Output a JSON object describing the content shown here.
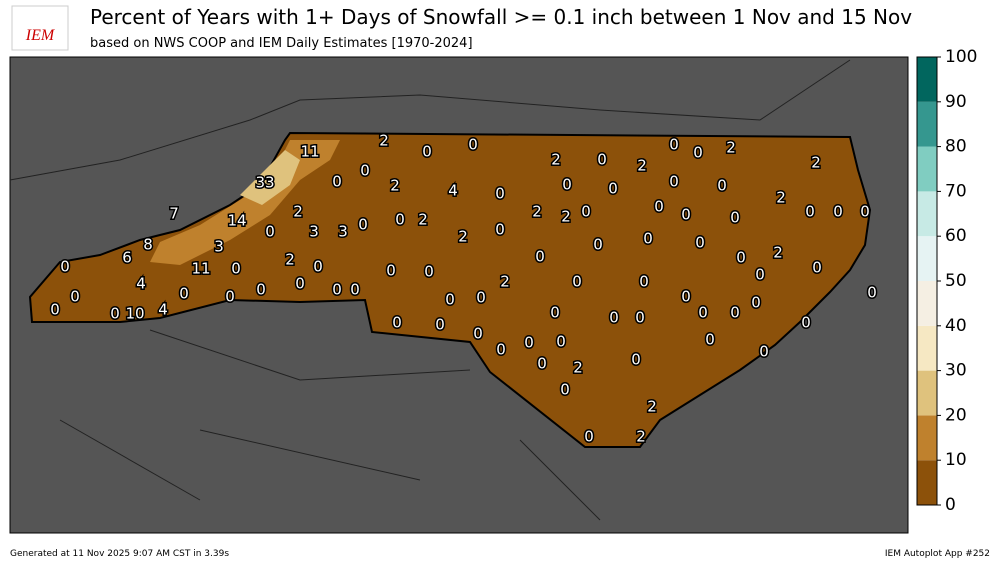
{
  "header": {
    "title": "Percent of Years with 1+ Days of Snowfall >= 0.1 inch between 1 Nov and 15 Nov",
    "subtitle": "based on NWS COOP and IEM Daily Estimates [1970-2024]",
    "logo": "IEM"
  },
  "colorbar": {
    "ticks": [
      0,
      10,
      20,
      30,
      40,
      50,
      60,
      70,
      80,
      90,
      100
    ],
    "colors": [
      "#8c510a",
      "#bf812d",
      "#dfc27d",
      "#f6e8c3",
      "#f5efe3",
      "#e6f3f3",
      "#c7eae5",
      "#80cdc1",
      "#35978f",
      "#01665e"
    ]
  },
  "map": {
    "labels": [
      2,
      0,
      0,
      11,
      0,
      2,
      0,
      33,
      4,
      0,
      2,
      0,
      2,
      0,
      0,
      2,
      2,
      0,
      0,
      0,
      0,
      2,
      0,
      0,
      0,
      7,
      14,
      2,
      0,
      0,
      2,
      2,
      2,
      0,
      0,
      0,
      0,
      0,
      3,
      3,
      2,
      0,
      8,
      3,
      0,
      0,
      0,
      0,
      2,
      6,
      0,
      2,
      0,
      11,
      0,
      0,
      0,
      0,
      0,
      0,
      4,
      0,
      0,
      0,
      0,
      0,
      0,
      0,
      2,
      0,
      0,
      0,
      0,
      0,
      0,
      10,
      4,
      0,
      0,
      0,
      0,
      0,
      0,
      0,
      0,
      0,
      0,
      0,
      0,
      0,
      0,
      0,
      0,
      0,
      2,
      0,
      0,
      2,
      0,
      2,
      0
    ]
  },
  "footer": {
    "left": "Generated at 11 Nov 2025 9:07 AM CST in 3.39s",
    "right": "IEM Autoplot App #252"
  }
}
